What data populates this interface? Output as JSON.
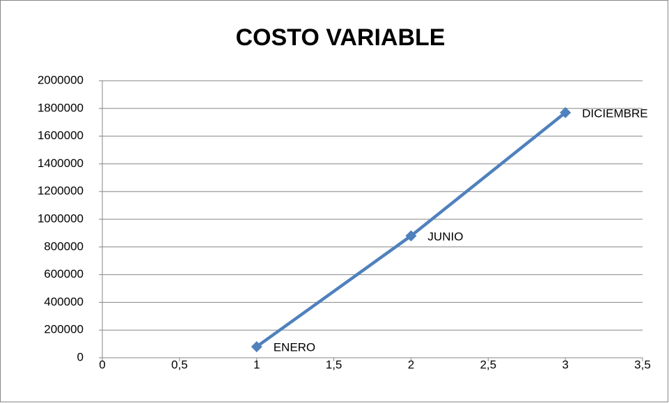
{
  "chart_data": {
    "type": "scatter-line",
    "title": "COSTO VARIABLE",
    "x": [
      1,
      2,
      3
    ],
    "values": [
      80000,
      880000,
      1770000
    ],
    "point_labels": [
      "ENERO",
      "JUNIO",
      "DICIEMBRE"
    ],
    "color": "#4f81bd",
    "xlim": [
      0,
      3.5
    ],
    "xticks": [
      0,
      {
        "value": 0.5,
        "label": "0,5"
      },
      1,
      {
        "value": 1.5,
        "label": "1,5"
      },
      2,
      {
        "value": 2.5,
        "label": "2,5"
      },
      3,
      {
        "value": 3.5,
        "label": "3,5"
      }
    ],
    "ylim": [
      0,
      2000000
    ],
    "yticks": [
      0,
      200000,
      400000,
      600000,
      800000,
      1000000,
      1200000,
      1400000,
      1600000,
      1800000,
      2000000
    ],
    "grid": true
  }
}
